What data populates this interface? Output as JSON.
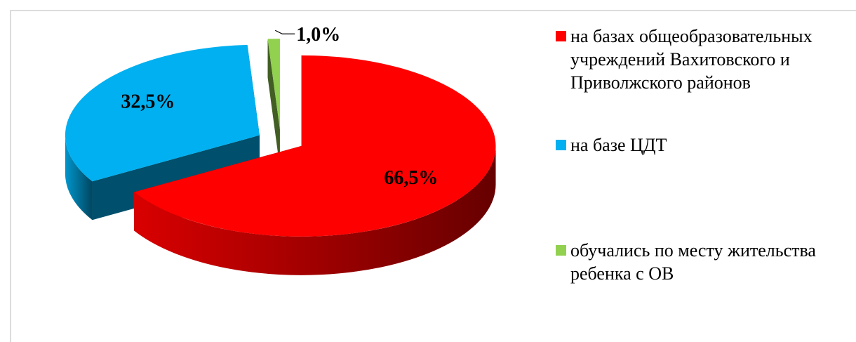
{
  "chart_data": {
    "type": "pie",
    "categories": [
      "на базах общеобразовательных учреждений Вахитовского и Приволжского районов",
      "на базе ЦДТ",
      "обучались по месту жительства ребенка с ОВ"
    ],
    "values": [
      66.5,
      32.5,
      1.0
    ],
    "value_labels": [
      "66,5%",
      "32,5%",
      "1,0%"
    ],
    "colors": [
      "#ff0000",
      "#00b0f0",
      "#92d050"
    ],
    "legend": "right"
  }
}
